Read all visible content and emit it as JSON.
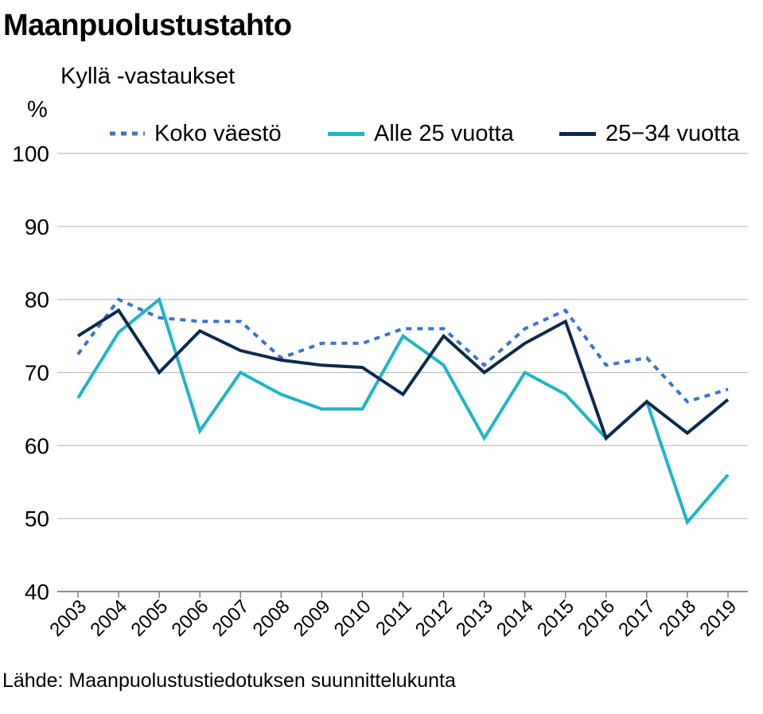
{
  "title": "Maanpuolustustahto",
  "subtitle": "Kyllä -vastaukset",
  "y_unit": "%",
  "source": "Lähde: Maanpuolustustiedotuksen suunnittelukunta",
  "colors": {
    "koko": "#3a74cf",
    "alle25": "#1fb5c7",
    "v25_34": "#0c2a4d",
    "grid": "#bdbdbd",
    "axis": "#666666"
  },
  "chart_data": {
    "type": "line",
    "categories": [
      "2003",
      "2004",
      "2005",
      "2006",
      "2007",
      "2008",
      "2009",
      "2010",
      "2011",
      "2012",
      "2013",
      "2014",
      "2015",
      "2016",
      "2017",
      "2018",
      "2019"
    ],
    "ylim": [
      40,
      100
    ],
    "yticks": [
      40,
      50,
      60,
      70,
      80,
      90,
      100
    ],
    "grid": true,
    "legend_position": "top",
    "series": [
      {
        "name": "Koko väestö",
        "style": "dotted",
        "values": [
          72.5,
          80,
          77.5,
          77,
          77,
          72,
          74,
          74,
          76,
          76,
          71,
          76,
          78.5,
          71,
          72,
          66,
          67.7
        ]
      },
      {
        "name": "Alle 25 vuotta",
        "style": "solid",
        "values": [
          66.5,
          75.5,
          80,
          62,
          70,
          67,
          65,
          65,
          75,
          71,
          61,
          70,
          67,
          61,
          66,
          49.5,
          56
        ]
      },
      {
        "name": "25−34 vuotta",
        "style": "solid",
        "values": [
          75,
          78.5,
          70,
          75.7,
          73,
          71.7,
          71,
          70.7,
          67,
          75,
          70,
          74,
          77,
          61,
          66,
          61.7,
          66.3
        ]
      }
    ]
  }
}
